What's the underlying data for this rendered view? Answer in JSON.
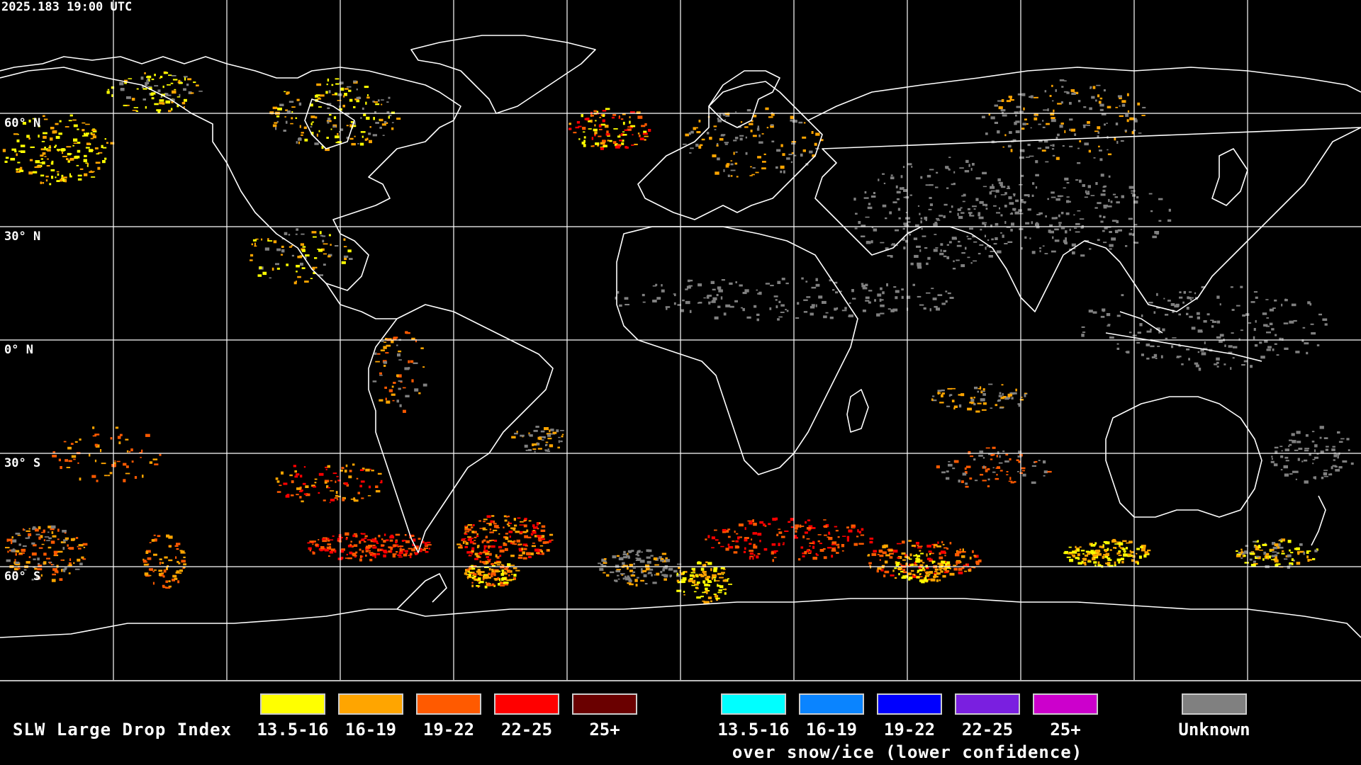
{
  "map": {
    "timestamp": "2025.183 19:00 UTC",
    "lat_labels": [
      "60° N",
      "30° N",
      "0° N",
      "30° S",
      "60° S"
    ]
  },
  "legend": {
    "title": "SLW Large Drop Index",
    "standard_bins": [
      {
        "label": "13.5-16",
        "color": "#ffff00"
      },
      {
        "label": "16-19",
        "color": "#ffa500"
      },
      {
        "label": "19-22",
        "color": "#ff5a00"
      },
      {
        "label": "22-25",
        "color": "#ff0000"
      },
      {
        "label": "25+",
        "color": "#6a0000"
      }
    ],
    "snow_ice_bins": [
      {
        "label": "13.5-16",
        "color": "#00ffff"
      },
      {
        "label": "16-19",
        "color": "#0a84ff"
      },
      {
        "label": "19-22",
        "color": "#0000ff"
      },
      {
        "label": "22-25",
        "color": "#7a1fe0"
      },
      {
        "label": "25+",
        "color": "#cc00cc"
      }
    ],
    "snow_ice_note": "over snow/ice (lower confidence)",
    "unknown": {
      "label": "Unknown",
      "color": "#808080"
    }
  }
}
